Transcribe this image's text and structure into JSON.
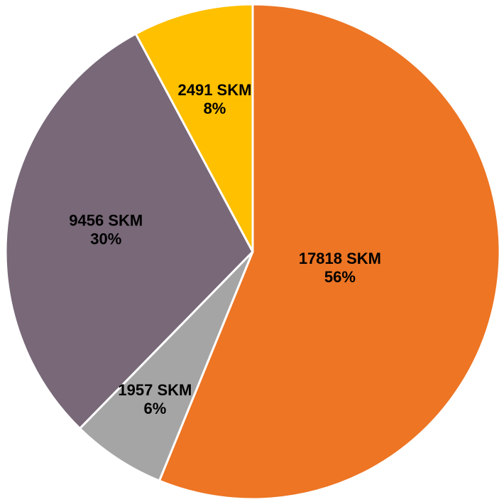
{
  "chart_data": {
    "type": "pie",
    "categories": [
      null,
      null,
      null,
      null
    ],
    "values": [
      17818,
      1957,
      9456,
      2491
    ],
    "value_labels": [
      "17818 SKM",
      "1957 SKM",
      "9456 SKM",
      "2491 SKM"
    ],
    "percent_labels": [
      "56%",
      "6%",
      "30%",
      "8%"
    ],
    "colors": [
      "#ED7524",
      "#A5A5A5",
      "#786878",
      "#FFC000"
    ]
  }
}
